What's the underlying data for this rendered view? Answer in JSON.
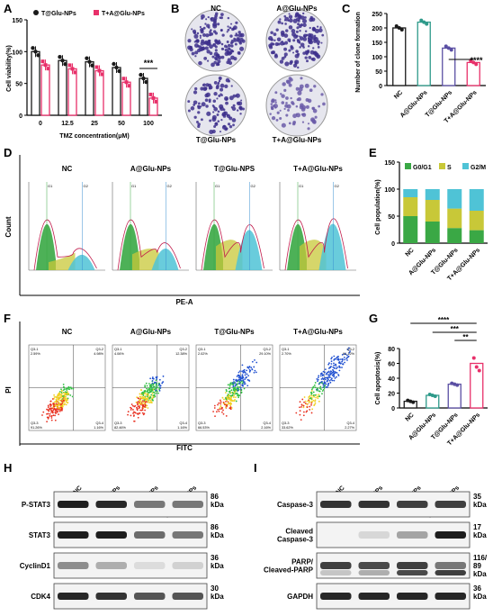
{
  "panel_letters": [
    "A",
    "B",
    "C",
    "D",
    "E",
    "F",
    "G",
    "H",
    "I"
  ],
  "colors": {
    "black": "#1a1a1a",
    "pink": "#e8306a",
    "purple": "#5a4fa3",
    "blue": "#3a8fd0",
    "green": "#3aa845",
    "yellow": "#c8c838",
    "cyan": "#4fc3d6",
    "teal": "#2e9a8a"
  },
  "chart_data": [
    {
      "id": "A",
      "type": "bar",
      "categories": [
        "0",
        "12.5",
        "25",
        "50",
        "100"
      ],
      "series": [
        {
          "name": "T@Glu-NPs",
          "values": [
            100,
            86,
            84,
            75,
            58
          ]
        },
        {
          "name": "T+A@Glu-NPs",
          "values": [
            79,
            73,
            70,
            52,
            27
          ]
        }
      ],
      "xlabel": "TMZ concentration(μM)",
      "ylabel": "Cell viability(%)",
      "ylim": [
        0,
        150
      ],
      "yticks": [
        "0",
        "50",
        "100",
        "150"
      ],
      "sig": "***",
      "legend": "top"
    },
    {
      "id": "C",
      "type": "bar",
      "categories": [
        "NC",
        "A@Glu-NPs",
        "T@Glu-NPs",
        "T+A@Glu-NPs"
      ],
      "values": [
        200,
        220,
        130,
        80
      ],
      "ylabel": "Number of clone formation",
      "ylim": [
        0,
        250
      ],
      "yticks": [
        "0",
        "50",
        "100",
        "150",
        "200",
        "250"
      ],
      "sig": "****"
    },
    {
      "id": "E",
      "type": "bar",
      "categories": [
        "NC",
        "A@Glu-NPs",
        "T@Glu-NPs",
        "T+A@Glu-NPs"
      ],
      "series": [
        {
          "name": "G0/G1",
          "values": [
            50,
            40,
            28,
            24
          ]
        },
        {
          "name": "S",
          "values": [
            35,
            40,
            36,
            36
          ]
        },
        {
          "name": "G2/M",
          "values": [
            15,
            20,
            36,
            40
          ]
        }
      ],
      "ylabel": "Cell population(%)",
      "ylim": [
        0,
        150
      ],
      "yticks": [
        "0",
        "50",
        "100",
        "150"
      ],
      "legend": "top"
    },
    {
      "id": "G",
      "type": "bar",
      "categories": [
        "NC",
        "A@Glu-NPs",
        "T@Glu-NPs",
        "T+A@Glu-NPs"
      ],
      "values": [
        9,
        17,
        32,
        60
      ],
      "ylabel": "Cell apoptosis(%)",
      "ylim": [
        0,
        80
      ],
      "yticks": [
        "0",
        "20",
        "40",
        "60",
        "80"
      ],
      "sig": [
        "****",
        "***",
        "**"
      ]
    }
  ],
  "panelB": {
    "labels": [
      "NC",
      "A@Glu-NPs",
      "T@Glu-NPs",
      "T+A@Glu-NPs"
    ]
  },
  "panelD": {
    "titles": [
      "NC",
      "A@Glu-NPs",
      "T@Glu-NPS",
      "T+A@Glu-NPs"
    ],
    "ylabel": "Count",
    "xlabel": "PE-A",
    "g1": "G1",
    "g2": "G2"
  },
  "panelF": {
    "titles": [
      "NC",
      "A@Glu-NPs",
      "T@Glu-NPs",
      "T+A@Glu-NPs"
    ],
    "ylabel": "PI",
    "xlabel": "FITC",
    "quads": [
      [
        "Q3-1",
        "2.59%",
        "Q3-2",
        "4.98%",
        "Q3-3",
        "91.26%",
        "Q3-4",
        "1.16%"
      ],
      [
        "Q3-1",
        "4.06%",
        "Q3-2",
        "12.38%",
        "Q3-3",
        "82.46%",
        "Q3-4",
        "1.16%"
      ],
      [
        "Q3-1",
        "2.02%",
        "Q3-2",
        "29.10%",
        "Q3-3",
        "66.53%",
        "Q3-4",
        "2.16%"
      ],
      [
        "Q3-1",
        "2.70%",
        "Q3-2",
        "61.12%",
        "Q3-3",
        "33.62%",
        "Q3-4",
        "2.27%"
      ]
    ]
  },
  "panelH": {
    "lanes": [
      "NC",
      "T@Glu-NPs",
      "A@Glu-NPs",
      "T+A@Glu-NPs"
    ],
    "rows": [
      {
        "name": "P-STAT3",
        "kda": "86\nkDa"
      },
      {
        "name": "STAT3",
        "kda": "86\nkDa"
      },
      {
        "name": "CyclinD1",
        "kda": "36\nkDa"
      },
      {
        "name": "CDK4",
        "kda": "30\nkDa"
      }
    ]
  },
  "panelI": {
    "lanes": [
      "NC",
      "T@Glu-NPs",
      "A@Glu-NPs",
      "T+A@Glu-NPs"
    ],
    "rows": [
      {
        "name": "Caspase-3",
        "kda": "35\nkDa"
      },
      {
        "name": "Cleaved\nCaspase-3",
        "kda": "17\nkDa"
      },
      {
        "name": "PARP/\nCleaved-PARP",
        "kda": "116/\n89\nkDa"
      },
      {
        "name": "GAPDH",
        "kda": "36\nkDa"
      }
    ]
  }
}
